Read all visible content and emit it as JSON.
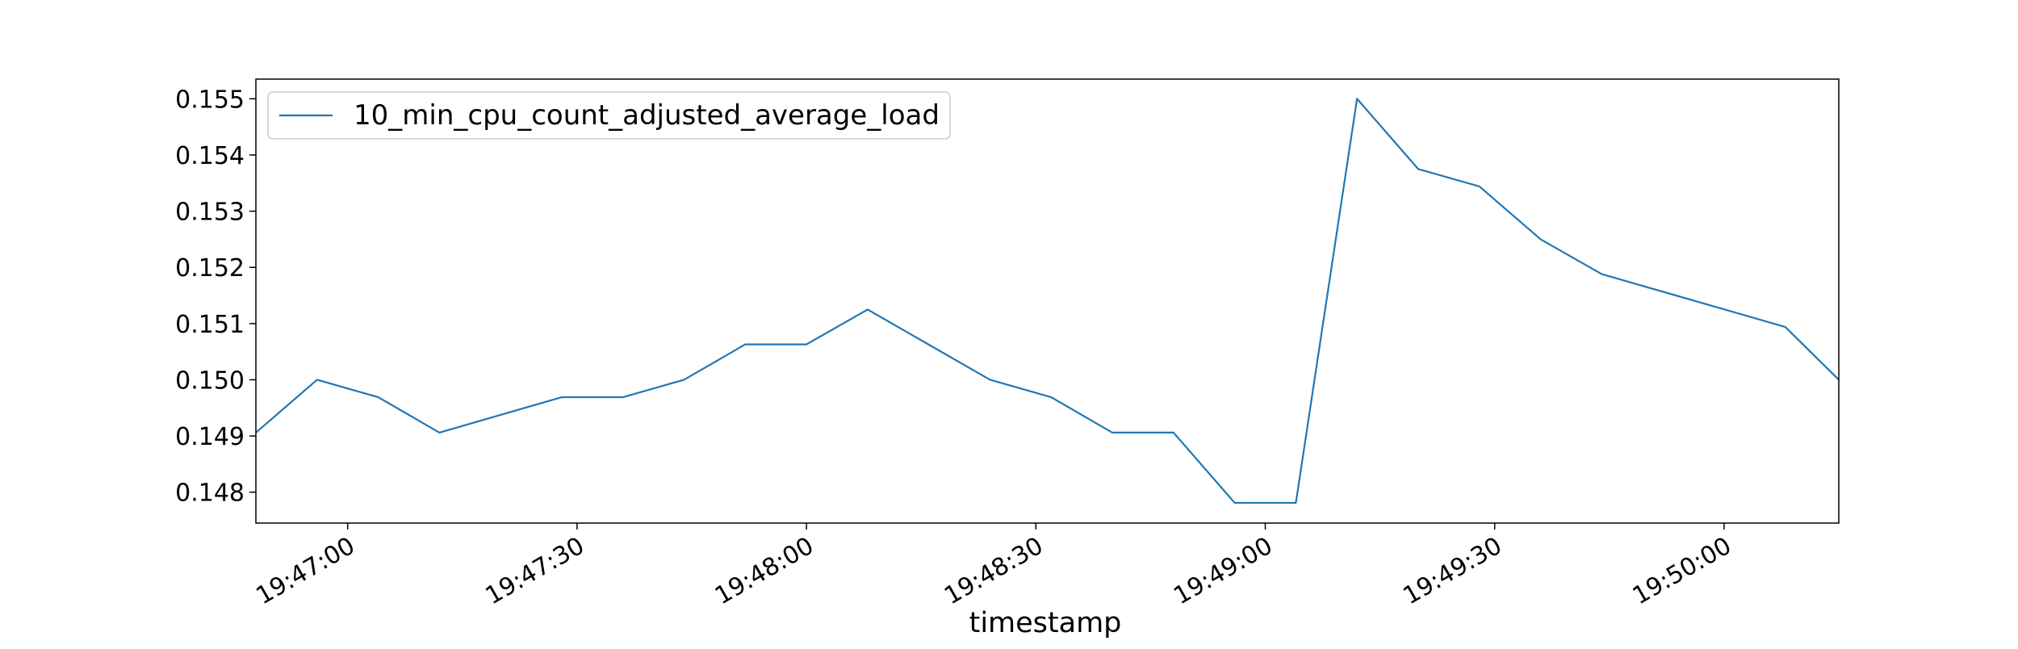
{
  "chart_data": {
    "type": "line",
    "title": "",
    "xlabel": "timestamp",
    "ylabel": "",
    "x_ticks": [
      "19:47:00",
      "19:47:30",
      "19:48:00",
      "19:48:30",
      "19:49:00",
      "19:49:30",
      "19:50:00"
    ],
    "y_ticks": [
      "0.148",
      "0.149",
      "0.150",
      "0.151",
      "0.152",
      "0.153",
      "0.154",
      "0.155"
    ],
    "xlim": [
      "19:46:48",
      "19:50:15"
    ],
    "ylim": [
      0.14745,
      0.15535
    ],
    "grid": false,
    "legend_position": "top-left",
    "series": [
      {
        "name": "10_min_cpu_count_adjusted_average_load",
        "color": "#1f77b4",
        "points": [
          {
            "x": "19:46:48",
            "y": 0.14906
          },
          {
            "x": "19:46:56",
            "y": 0.15
          },
          {
            "x": "19:47:04",
            "y": 0.14969
          },
          {
            "x": "19:47:12",
            "y": 0.14906
          },
          {
            "x": "19:47:28",
            "y": 0.14969
          },
          {
            "x": "19:47:36",
            "y": 0.14969
          },
          {
            "x": "19:47:44",
            "y": 0.15
          },
          {
            "x": "19:47:52",
            "y": 0.15063
          },
          {
            "x": "19:48:00",
            "y": 0.15063
          },
          {
            "x": "19:48:08",
            "y": 0.15125
          },
          {
            "x": "19:48:24",
            "y": 0.15
          },
          {
            "x": "19:48:32",
            "y": 0.14969
          },
          {
            "x": "19:48:40",
            "y": 0.14906
          },
          {
            "x": "19:48:48",
            "y": 0.14906
          },
          {
            "x": "19:48:56",
            "y": 0.14781
          },
          {
            "x": "19:49:04",
            "y": 0.14781
          },
          {
            "x": "19:49:12",
            "y": 0.155
          },
          {
            "x": "19:49:20",
            "y": 0.15375
          },
          {
            "x": "19:49:28",
            "y": 0.15344
          },
          {
            "x": "19:49:36",
            "y": 0.1525
          },
          {
            "x": "19:49:44",
            "y": 0.15188
          },
          {
            "x": "19:50:08",
            "y": 0.15094
          },
          {
            "x": "19:50:15",
            "y": 0.15
          }
        ]
      }
    ]
  }
}
